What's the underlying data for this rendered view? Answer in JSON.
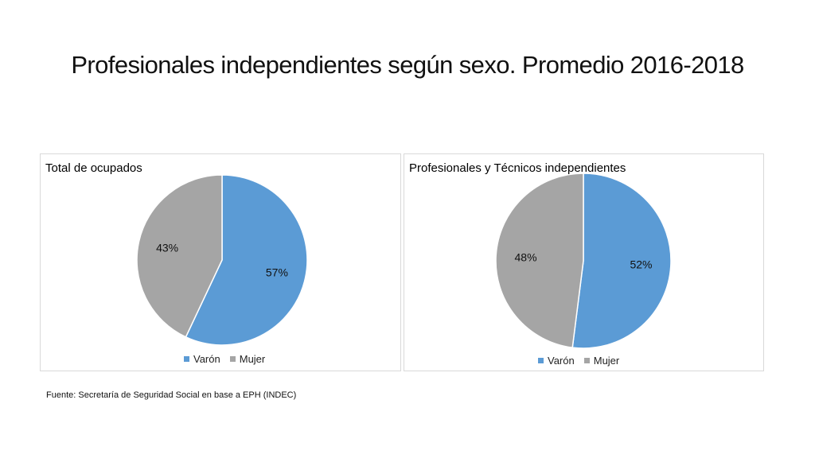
{
  "title": "Profesionales independientes según sexo. Promedio 2016-2018",
  "colors": {
    "varon": "#5b9bd5",
    "mujer": "#a5a5a5"
  },
  "chart_data": [
    {
      "type": "pie",
      "title": "Total de ocupados",
      "categories": [
        "Varón",
        "Mujer"
      ],
      "values": [
        57,
        43
      ],
      "labels": [
        "57%",
        "43%"
      ],
      "legend": "bottom"
    },
    {
      "type": "pie",
      "title": "Profesionales y Técnicos independientes",
      "categories": [
        "Varón",
        "Mujer"
      ],
      "values": [
        52,
        48
      ],
      "labels": [
        "52%",
        "48%"
      ],
      "legend": "bottom"
    }
  ],
  "source": "Fuente: Secretaría de Seguridad Social en base a EPH (INDEC)"
}
